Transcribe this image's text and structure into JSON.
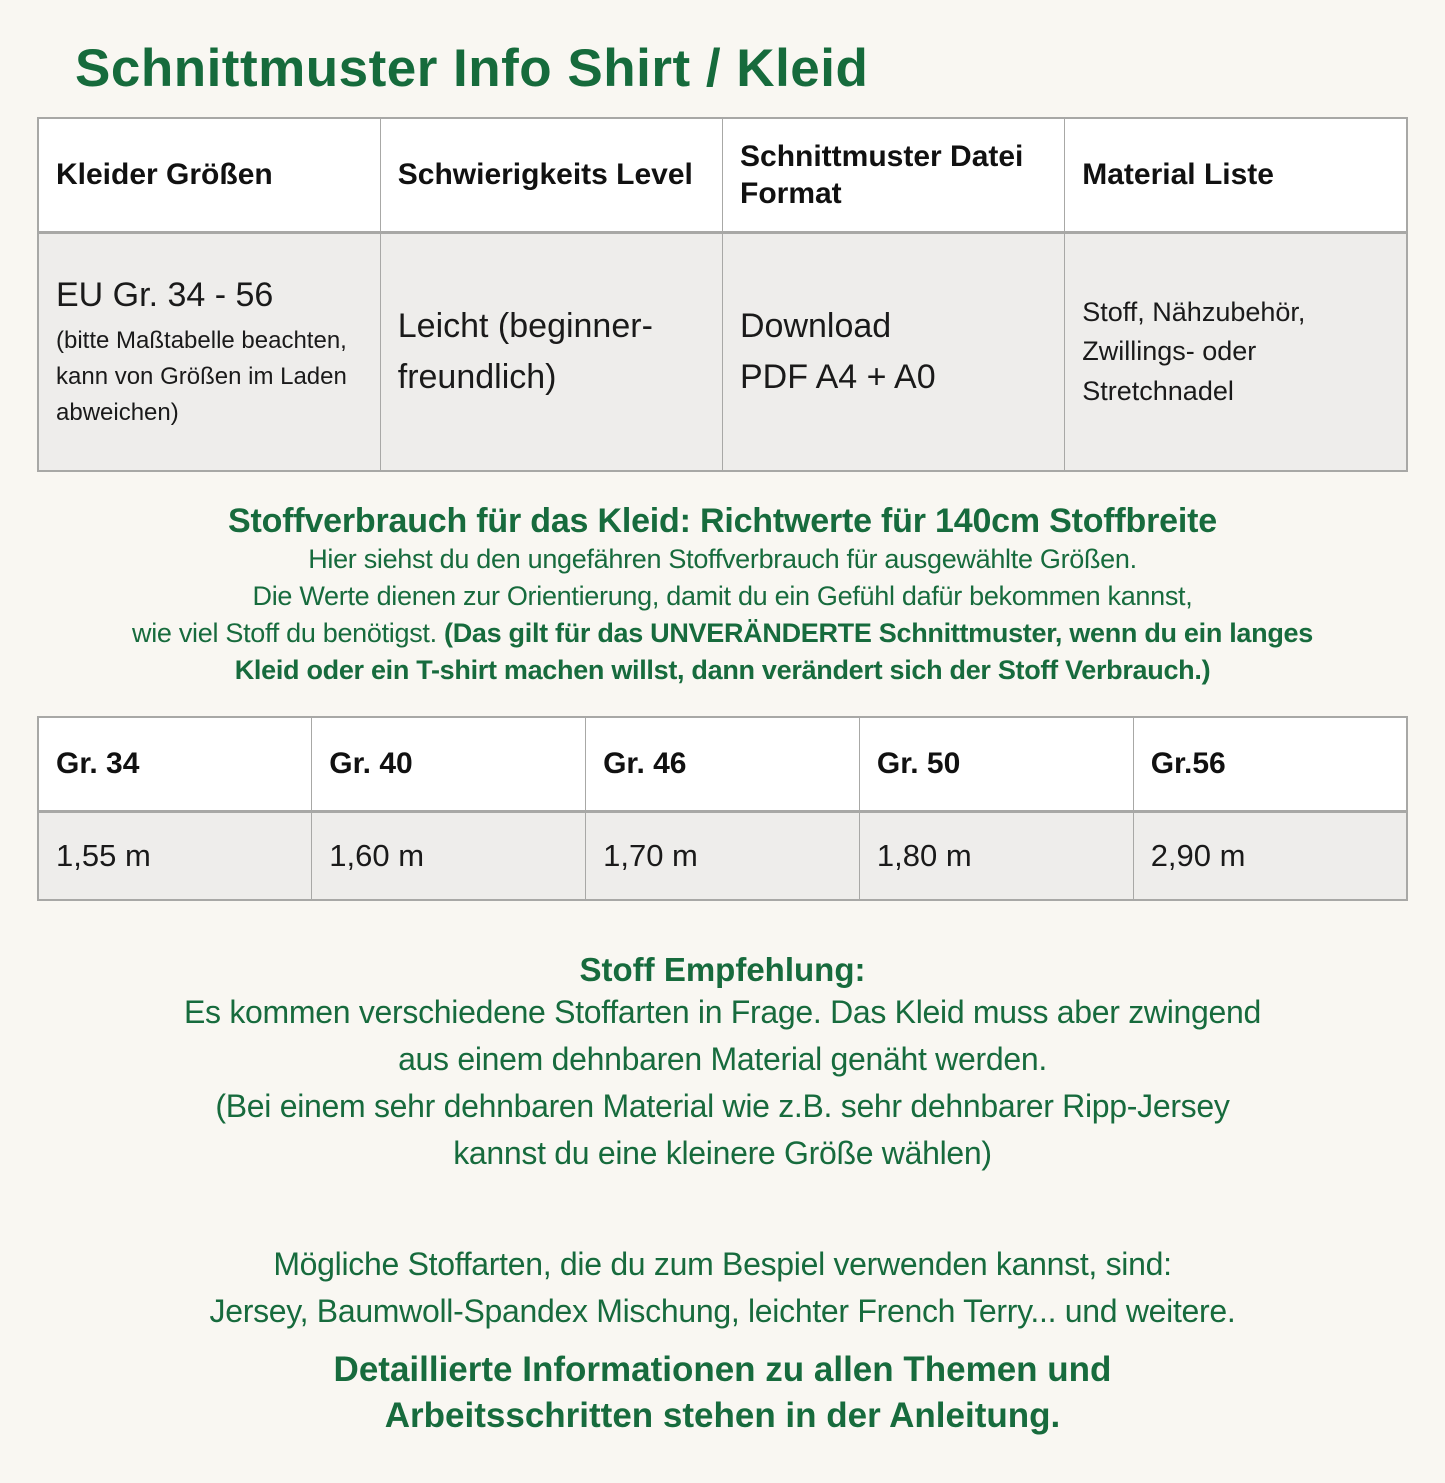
{
  "page": {
    "title": "Schnittmuster Info Shirt / Kleid"
  },
  "colors": {
    "accent_green": "#166b3c",
    "background": "#f9f7f2",
    "table_border": "#a8a8a6",
    "table_cell_bg": "#eeedeb",
    "table_header_bg": "#ffffff",
    "body_text": "#1a1a1a"
  },
  "info_table": {
    "headers": [
      "Kleider Größen",
      "Schwierigkeits Level",
      "Schnittmuster Datei Format",
      "Material Liste"
    ],
    "row": {
      "sizes_main": "EU Gr. 34 - 56",
      "sizes_note": "(bitte Maßtabelle beachten, kann von Größen im Laden abweichen)",
      "difficulty": "Leicht (beginner-freundlich)",
      "format_line1": "Download",
      "format_line2": "PDF A4 + A0",
      "materials": "Stoff, Nähzubehör, Zwillings- oder Stretchnadel"
    }
  },
  "usage_section": {
    "heading": "Stoffverbrauch für das Kleid: Richtwerte für 140cm Stoffbreite",
    "line1": "Hier siehst du den ungefähren Stoffverbrauch für ausgewählte Größen.",
    "line2": "Die Werte dienen zur Orientierung, damit du ein Gefühl dafür bekommen kannst,",
    "line3_normal": "wie viel Stoff du benötigst. ",
    "line3_bold": "(Das gilt für das UNVERÄNDERTE Schnittmuster, wenn du ein langes",
    "line4_bold": "Kleid oder ein T-shirt machen willst, dann verändert sich der Stoff Verbrauch.)"
  },
  "fabric_table": {
    "headers": [
      "Gr. 34",
      "Gr. 40",
      "Gr. 46",
      "Gr. 50",
      "Gr.56"
    ],
    "values": [
      "1,55 m",
      "1,60 m",
      "1,70 m",
      "1,80 m",
      "2,90 m"
    ]
  },
  "recommendation_section": {
    "heading": "Stoff Empfehlung:",
    "line1": "Es kommen verschiedene Stoffarten in Frage. Das Kleid muss aber zwingend",
    "line2": "aus einem dehnbaren Material genäht werden.",
    "line3": "(Bei einem sehr dehnbaren Material wie z.B. sehr dehnbarer Ripp-Jersey",
    "line4": "kannst du eine kleinere Größe wählen)"
  },
  "fabric_types_section": {
    "line1": "Mögliche Stoffarten, die du zum Bespiel verwenden kannst, sind:",
    "line2": "Jersey, Baumwoll-Spandex Mischung, leichter French Terry... und weitere."
  },
  "footer": {
    "line1": "Detaillierte Informationen zu allen Themen und",
    "line2": "Arbeitsschritten stehen in der Anleitung."
  }
}
